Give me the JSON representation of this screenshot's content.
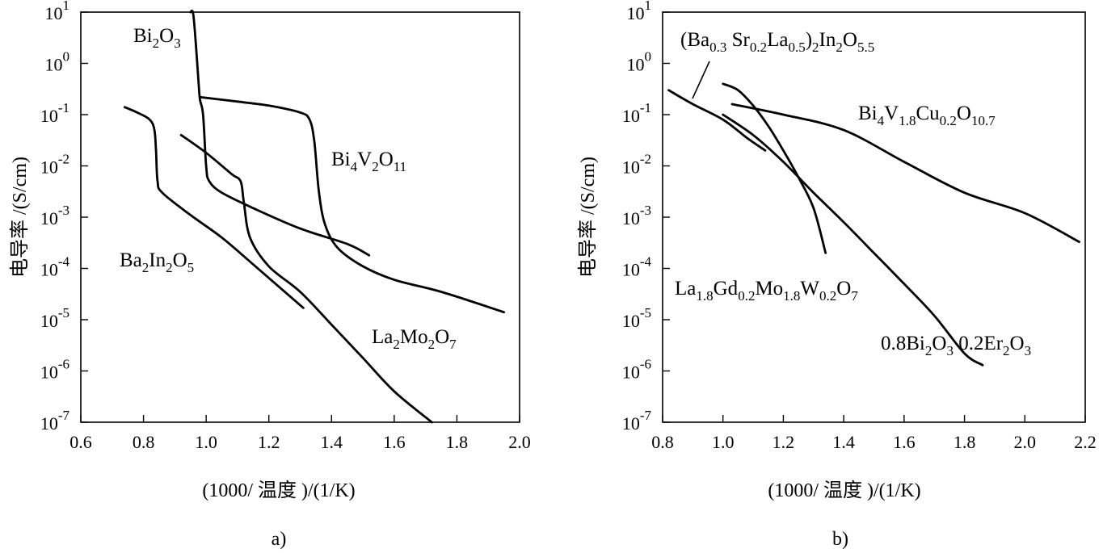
{
  "chart_data": [
    {
      "type": "line",
      "panel_label": "a)",
      "xlabel": "(1000/ 温度 )/(1/K)",
      "ylabel": "电导率 /(S/cm)",
      "xlim": [
        0.6,
        2.0
      ],
      "ylim_log10": [
        -7,
        1
      ],
      "y_scale": "log",
      "grid": false,
      "x_ticks": [
        "0.6",
        "0.8",
        "1.0",
        "1.2",
        "1.4",
        "1.6",
        "1.8",
        "2.0"
      ],
      "y_tick_exponents": [
        "1",
        "0",
        "-1",
        "-2",
        "-3",
        "-4",
        "-5",
        "-6",
        "-7"
      ],
      "series": [
        {
          "name": "Bi2O3",
          "label_parts": [
            [
              "Bi",
              ""
            ],
            [
              "2",
              "sub"
            ],
            [
              "O",
              ""
            ],
            [
              "3",
              "sub"
            ]
          ],
          "points": [
            [
              0.95,
              10.0
            ],
            [
              0.96,
              8.0
            ],
            [
              0.975,
              0.5
            ],
            [
              0.98,
              0.2
            ],
            [
              0.99,
              0.1
            ],
            [
              1.0,
              0.01
            ],
            [
              1.01,
              0.005
            ],
            [
              1.05,
              0.003
            ],
            [
              1.15,
              0.0015
            ],
            [
              1.3,
              0.0006
            ],
            [
              1.45,
              0.0003
            ],
            [
              1.52,
              0.00018
            ]
          ]
        },
        {
          "name": "Bi4V2O11",
          "label_parts": [
            [
              "Bi",
              ""
            ],
            [
              "4",
              "sub"
            ],
            [
              "V",
              ""
            ],
            [
              "2",
              "sub"
            ],
            [
              "O",
              ""
            ],
            [
              "11",
              "sub"
            ]
          ],
          "points": [
            [
              0.98,
              0.22
            ],
            [
              1.1,
              0.18
            ],
            [
              1.2,
              0.15
            ],
            [
              1.3,
              0.11
            ],
            [
              1.33,
              0.08
            ],
            [
              1.345,
              0.03
            ],
            [
              1.36,
              0.003
            ],
            [
              1.38,
              0.0007
            ],
            [
              1.42,
              0.00025
            ],
            [
              1.5,
              0.00011
            ],
            [
              1.6,
              6e-05
            ],
            [
              1.75,
              3.5e-05
            ],
            [
              1.95,
              1.4e-05
            ]
          ]
        },
        {
          "name": "Ba2In2O5",
          "label_parts": [
            [
              "Ba",
              ""
            ],
            [
              "2",
              "sub"
            ],
            [
              "In",
              ""
            ],
            [
              "2",
              "sub"
            ],
            [
              "O",
              ""
            ],
            [
              "5",
              "sub"
            ]
          ],
          "points": [
            [
              0.74,
              0.14
            ],
            [
              0.78,
              0.11
            ],
            [
              0.82,
              0.08
            ],
            [
              0.835,
              0.05
            ],
            [
              0.84,
              0.02
            ],
            [
              0.845,
              0.005
            ],
            [
              0.86,
              0.003
            ],
            [
              0.95,
              0.0011
            ],
            [
              1.05,
              0.0004
            ],
            [
              1.15,
              0.00012
            ],
            [
              1.31,
              1.7e-05
            ]
          ]
        },
        {
          "name": "La2Mo2O7",
          "label_parts": [
            [
              "La",
              ""
            ],
            [
              "2",
              "sub"
            ],
            [
              "Mo",
              ""
            ],
            [
              "2",
              "sub"
            ],
            [
              "O",
              ""
            ],
            [
              "7",
              "sub"
            ]
          ],
          "points": [
            [
              0.92,
              0.04
            ],
            [
              1.0,
              0.018
            ],
            [
              1.08,
              0.007
            ],
            [
              1.11,
              0.005
            ],
            [
              1.12,
              0.002
            ],
            [
              1.14,
              0.0004
            ],
            [
              1.2,
              0.00011
            ],
            [
              1.3,
              3.5e-05
            ],
            [
              1.4,
              8e-06
            ],
            [
              1.5,
              1.8e-06
            ],
            [
              1.6,
              4e-07
            ],
            [
              1.72,
              1e-07
            ]
          ]
        }
      ]
    },
    {
      "type": "line",
      "panel_label": "b)",
      "xlabel": "(1000/ 温度 )/(1/K)",
      "ylabel": "电导率 /(S/cm)",
      "xlim": [
        0.8,
        2.2
      ],
      "ylim_log10": [
        -7,
        1
      ],
      "y_scale": "log",
      "grid": false,
      "x_ticks": [
        "0.8",
        "1.0",
        "1.2",
        "1.4",
        "1.6",
        "1.8",
        "2.0",
        "2.2"
      ],
      "y_tick_exponents": [
        "1",
        "0",
        "-1",
        "-2",
        "-3",
        "-4",
        "-5",
        "-6",
        "-7"
      ],
      "series": [
        {
          "name": "(Ba0.3Sr0.2La0.5)2In2O5.5",
          "label_parts": [
            [
              "(Ba",
              ""
            ],
            [
              "0.3",
              "sub"
            ],
            [
              " Sr",
              ""
            ],
            [
              "0.2",
              "sub"
            ],
            [
              "La",
              ""
            ],
            [
              "0.5",
              "sub"
            ],
            [
              ")",
              ""
            ],
            [
              "2",
              "sub"
            ],
            [
              "In",
              ""
            ],
            [
              "2",
              "sub"
            ],
            [
              "O",
              ""
            ],
            [
              "5.5",
              "sub"
            ]
          ],
          "points": [
            [
              0.82,
              0.3
            ],
            [
              0.9,
              0.16
            ],
            [
              1.0,
              0.08
            ],
            [
              1.08,
              0.035
            ],
            [
              1.14,
              0.02
            ]
          ]
        },
        {
          "name": "Bi4V1.8Cu0.2O10.7",
          "label_parts": [
            [
              "Bi",
              ""
            ],
            [
              "4",
              "sub"
            ],
            [
              "V",
              ""
            ],
            [
              "1.8",
              "sub"
            ],
            [
              "Cu",
              ""
            ],
            [
              "0.2",
              "sub"
            ],
            [
              "O",
              ""
            ],
            [
              "10.7",
              "sub"
            ]
          ],
          "points": [
            [
              1.03,
              0.16
            ],
            [
              1.2,
              0.1
            ],
            [
              1.4,
              0.05
            ],
            [
              1.6,
              0.012
            ],
            [
              1.8,
              0.003
            ],
            [
              2.0,
              0.0012
            ],
            [
              2.18,
              0.00033
            ]
          ]
        },
        {
          "name": "La1.8Gd0.2Mo1.8W0.2O7",
          "label_parts": [
            [
              "La",
              ""
            ],
            [
              "1.8",
              "sub"
            ],
            [
              "Gd",
              ""
            ],
            [
              "0.2",
              "sub"
            ],
            [
              "Mo",
              ""
            ],
            [
              "1.8",
              "sub"
            ],
            [
              "W",
              ""
            ],
            [
              "0.2",
              "sub"
            ],
            [
              "O",
              ""
            ],
            [
              "7",
              "sub"
            ]
          ],
          "points": [
            [
              1.0,
              0.4
            ],
            [
              1.05,
              0.3
            ],
            [
              1.1,
              0.15
            ],
            [
              1.15,
              0.06
            ],
            [
              1.2,
              0.02
            ],
            [
              1.25,
              0.006
            ],
            [
              1.3,
              0.0015
            ],
            [
              1.34,
              0.0002
            ]
          ]
        },
        {
          "name": "0.8Bi2O3 0.2Er2O3",
          "label_parts": [
            [
              "0.8Bi",
              ""
            ],
            [
              "2",
              "sub"
            ],
            [
              "O",
              ""
            ],
            [
              "3",
              "sub"
            ],
            [
              " 0.2Er",
              ""
            ],
            [
              "2",
              "sub"
            ],
            [
              "O",
              ""
            ],
            [
              "3",
              "sub"
            ]
          ],
          "points": [
            [
              1.0,
              0.1
            ],
            [
              1.1,
              0.04
            ],
            [
              1.2,
              0.012
            ],
            [
              1.3,
              0.003
            ],
            [
              1.4,
              0.0008
            ],
            [
              1.5,
              0.0002
            ],
            [
              1.6,
              5e-05
            ],
            [
              1.7,
              1.2e-05
            ],
            [
              1.8,
              2.2e-06
            ],
            [
              1.86,
              1.3e-06
            ]
          ]
        }
      ]
    }
  ]
}
